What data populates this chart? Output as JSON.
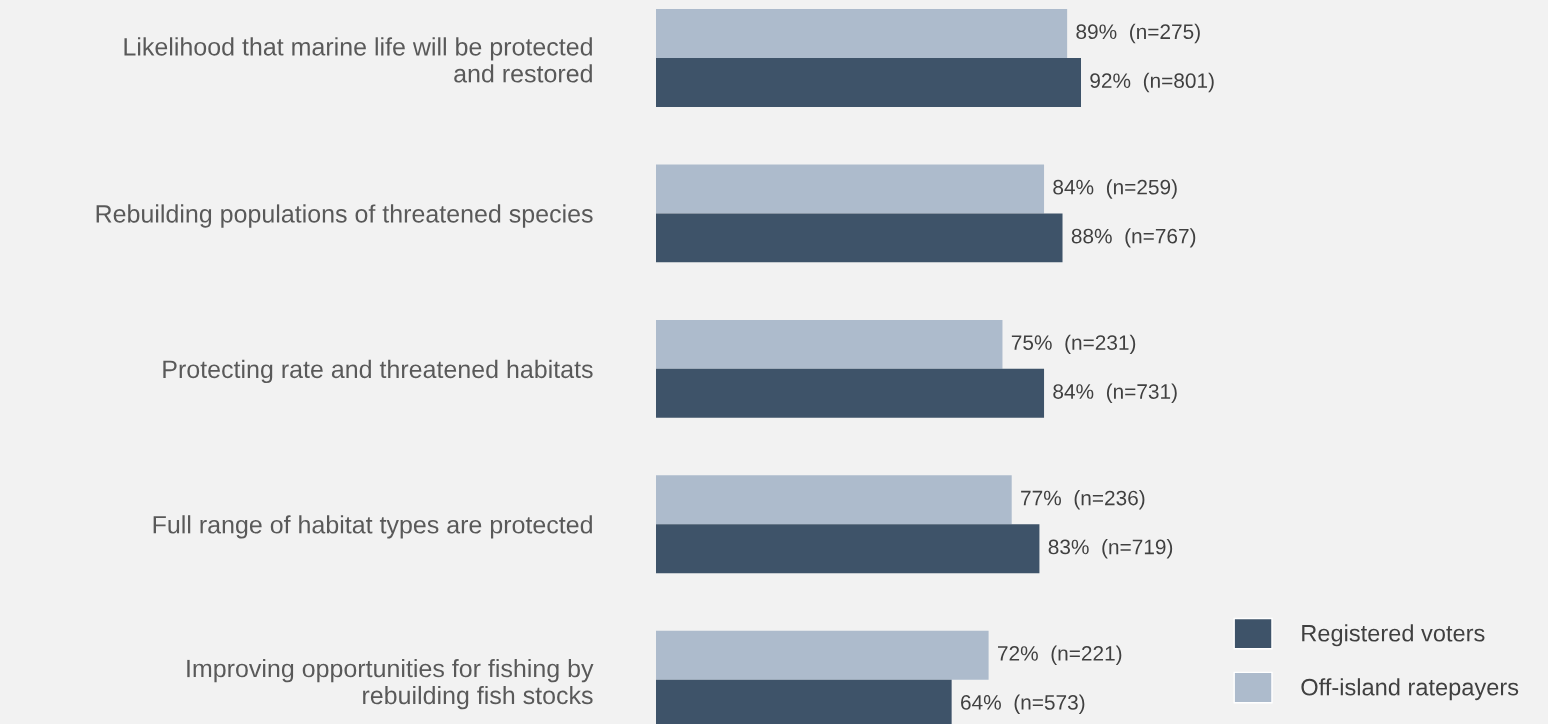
{
  "chart_data": {
    "type": "bar",
    "orientation": "horizontal",
    "categories": [
      "Likelihood that marine life will be protected\nand restored",
      "Rebuilding populations of threatened species",
      "Protecting rate and threatened habitats",
      "Full range of habitat types are protected",
      "Improving opportunities for fishing by\nrebuilding fish stocks"
    ],
    "series": [
      {
        "name": "Off-island ratepayers",
        "color": "#adbbcc",
        "values": [
          89,
          84,
          75,
          77,
          72
        ],
        "value_labels": [
          "89%  (n=275)",
          "84%  (n=259)",
          "75%  (n=231)",
          "77%  (n=236)",
          "72%  (n=221)"
        ]
      },
      {
        "name": "Registered voters",
        "color": "#3e5369",
        "values": [
          92,
          88,
          84,
          83,
          64
        ],
        "value_labels": [
          "92%  (n=801)",
          "88%  (n=767)",
          "84%  (n=731)",
          "83%  (n=719)",
          "64%  (n=573)"
        ]
      }
    ],
    "tick_labels": "y",
    "grid": false,
    "legend": "bottom right"
  }
}
